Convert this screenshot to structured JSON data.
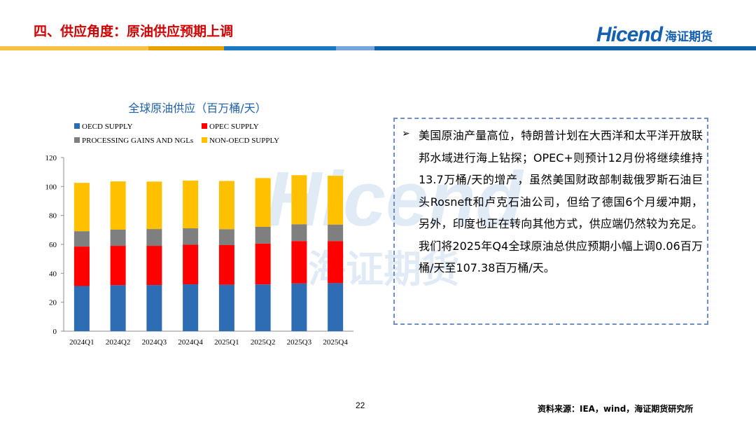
{
  "header": {
    "title": "四、供应角度：原油供应预期上调",
    "logo_en": "Hicend",
    "logo_cn": "海证期货",
    "stripe_colors": [
      "#f5c245",
      "#e9a300",
      "#1b78c2",
      "#74a7d9",
      "#0f63a8"
    ]
  },
  "watermark": {
    "en": "Hicend",
    "cn": "海证期货"
  },
  "chart_data": {
    "type": "bar",
    "stacked": true,
    "title": "全球原油供应（百万桶/天）",
    "categories": [
      "2024Q1",
      "2024Q2",
      "2024Q3",
      "2024Q4",
      "2025Q1",
      "2025Q2",
      "2025Q3",
      "2025Q4"
    ],
    "series": [
      {
        "name": "OECD SUPPLY",
        "color": "#2e6db4",
        "values": [
          31.2,
          31.8,
          31.9,
          32.4,
          32.1,
          32.3,
          33.0,
          33.2
        ]
      },
      {
        "name": "OPEC SUPPLY",
        "color": "#ff0000",
        "values": [
          27.3,
          27.2,
          27.1,
          27.4,
          27.4,
          28.3,
          29.3,
          29.1
        ]
      },
      {
        "name": "PROCESSING GAINS AND NGLs",
        "color": "#7f7f7f",
        "values": [
          10.6,
          11.2,
          11.6,
          11.3,
          11.0,
          11.5,
          11.6,
          11.4
        ]
      },
      {
        "name": "NON-OECD SUPPLY",
        "color": "#ffc000",
        "values": [
          33.4,
          33.3,
          32.8,
          33.0,
          33.3,
          33.7,
          33.9,
          33.7
        ]
      }
    ],
    "ylim": [
      0,
      120
    ],
    "yticks": [
      0,
      20,
      40,
      60,
      80,
      100,
      120
    ],
    "xlabel": "",
    "ylabel": "",
    "legend_position": "top",
    "grid": false
  },
  "commentary": {
    "bullet": "➢",
    "text": "美国原油产量高位，特朗普计划在大西洋和太平洋开放联邦水域进行海上钻探；OPEC+则预计12月份将继续维持13.7万桶/天的增产，虽然美国财政部制裁俄罗斯石油巨头Rosneft和卢克石油公司，但给了德国6个月缓冲期，另外，印度也正在转向其他方式，供应端仍然较为充足。我们将2025年Q4全球原油总供应预期小幅上调0.06百万桶/天至107.38百万桶/天。"
  },
  "footer": {
    "page_number": "22",
    "source": "资料来源：IEA，wind，海证期货研究所"
  }
}
